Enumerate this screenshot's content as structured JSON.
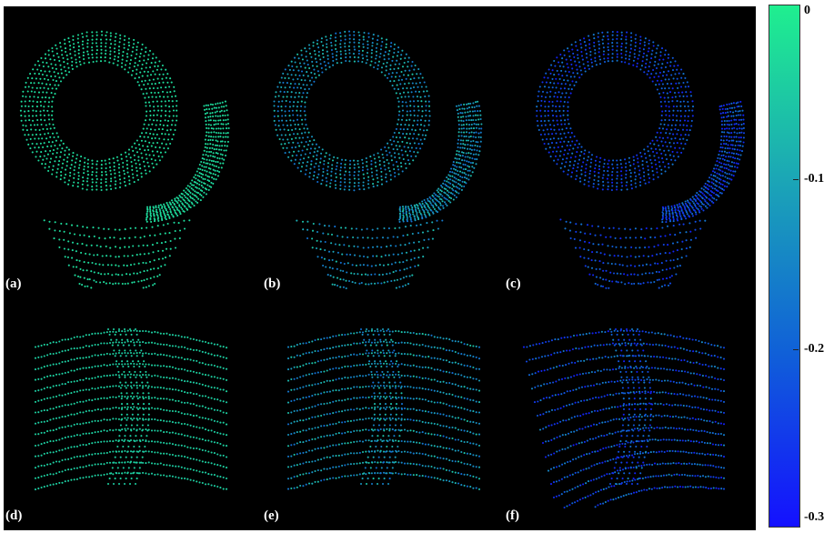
{
  "panels": [
    {
      "id": "a",
      "label": "(a)",
      "view": "top",
      "hue": 0.1,
      "variance": 0.02
    },
    {
      "id": "b",
      "label": "(b)",
      "view": "top",
      "hue": 0.4,
      "variance": 0.2
    },
    {
      "id": "c",
      "label": "(c)",
      "view": "top",
      "hue": 0.75,
      "variance": 0.2
    },
    {
      "id": "d",
      "label": "(d)",
      "view": "side",
      "hue": 0.15,
      "variance": 0.02
    },
    {
      "id": "e",
      "label": "(e)",
      "view": "side",
      "hue": 0.4,
      "variance": 0.22
    },
    {
      "id": "f",
      "label": "(f)",
      "view": "side-skewed",
      "hue": 0.7,
      "variance": 0.25
    }
  ],
  "colorbar": {
    "colors": [
      "#1fef8f",
      "#1ba6b6",
      "#1060d8",
      "#1411ff"
    ],
    "labels": [
      "0",
      "-0.1",
      "-0.2",
      "-0.3"
    ],
    "min": -0.3,
    "max": 0
  },
  "background": "#000000"
}
